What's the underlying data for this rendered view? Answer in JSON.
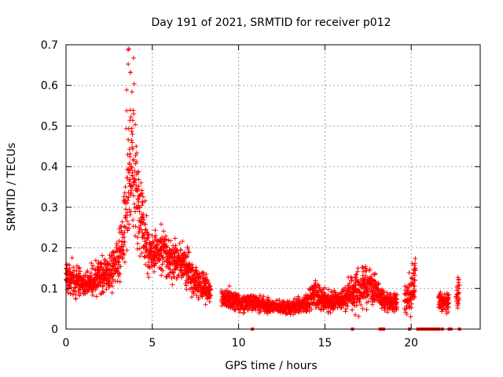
{
  "chart_data": {
    "type": "scatter",
    "title": "Day 191 of 2021, SRMTID for receiver p012",
    "xlabel": "GPS time / hours",
    "ylabel": "SRMTID / TECUs",
    "xlim": [
      0,
      24
    ],
    "ylim": [
      0,
      0.7
    ],
    "xticks": [
      0,
      5,
      10,
      15,
      20
    ],
    "yticks": [
      0,
      0.1,
      0.2,
      0.3,
      0.4,
      0.5,
      0.6,
      0.7
    ],
    "xtick_labels": [
      "0",
      "5",
      "10",
      "15",
      "20"
    ],
    "ytick_labels": [
      "0",
      "0.1",
      "0.2",
      "0.3",
      "0.4",
      "0.5",
      "0.6",
      "0.7"
    ],
    "grid": true,
    "marker": "+",
    "series": [
      {
        "name": "SRMTID",
        "color": "#ff0000",
        "envelope_hours": [
          0,
          0.5,
          1,
          1.5,
          2,
          2.5,
          3,
          3.3,
          3.6,
          3.8,
          4.0,
          4.3,
          4.6,
          5.0,
          5.5,
          6.0,
          6.5,
          7.0,
          7.5,
          8,
          9,
          10,
          11,
          12,
          13,
          14,
          14.3,
          14.6,
          15,
          16,
          16.6,
          17,
          17.5,
          18,
          18.4,
          19,
          19.5,
          20,
          20.2,
          21.5,
          22,
          22.5,
          22.8
        ],
        "envelope_median": [
          0.13,
          0.12,
          0.11,
          0.12,
          0.13,
          0.14,
          0.17,
          0.24,
          0.33,
          0.42,
          0.35,
          0.28,
          0.22,
          0.18,
          0.2,
          0.17,
          0.17,
          0.15,
          0.12,
          0.1,
          0.08,
          0.065,
          0.065,
          0.055,
          0.05,
          0.065,
          0.09,
          0.08,
          0.07,
          0.07,
          0.09,
          0.1,
          0.11,
          0.09,
          0.07,
          0.065,
          0.07,
          0.09,
          0.12,
          0.07,
          0.065,
          0.07,
          0.1
        ],
        "envelope_spread": [
          0.04,
          0.035,
          0.03,
          0.04,
          0.04,
          0.05,
          0.06,
          0.08,
          0.12,
          0.14,
          0.12,
          0.09,
          0.07,
          0.05,
          0.05,
          0.05,
          0.05,
          0.045,
          0.035,
          0.03,
          0.025,
          0.02,
          0.02,
          0.015,
          0.015,
          0.02,
          0.04,
          0.035,
          0.025,
          0.02,
          0.05,
          0.05,
          0.05,
          0.04,
          0.02,
          0.02,
          0.025,
          0.05,
          0.06,
          0.02,
          0.02,
          0.025,
          0.04
        ],
        "peak_value": 0.69,
        "peak_hour": 3.7
      }
    ],
    "zero_markers_hours": [
      10.8,
      16.6,
      18.2,
      18.3,
      18.4,
      19.9,
      20.4,
      20.6,
      20.8,
      21.0,
      21.2,
      21.4,
      21.6,
      21.8,
      22.2,
      22.3,
      22.8
    ],
    "gaps_hours": [
      [
        8.4,
        9.0
      ],
      [
        19.2,
        19.6
      ],
      [
        20.25,
        21.6
      ],
      [
        22.2,
        22.6
      ]
    ]
  }
}
